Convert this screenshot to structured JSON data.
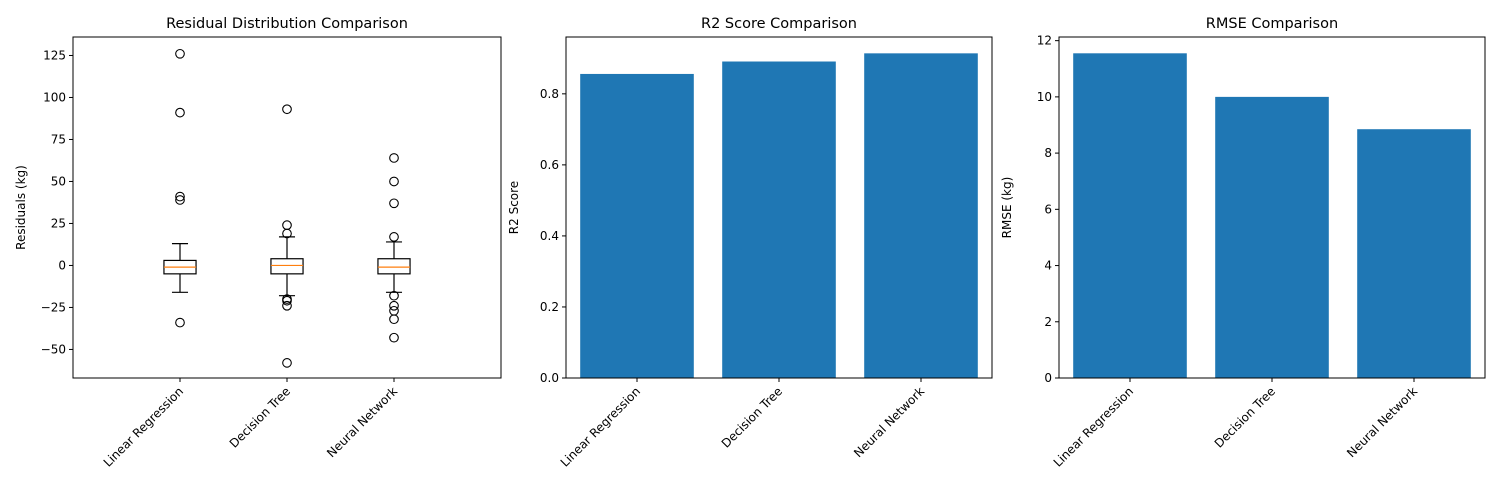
{
  "chart_data": [
    {
      "type": "box",
      "title": "Residual Distribution Comparison",
      "xlabel": "",
      "ylabel": "Residuals (kg)",
      "categories": [
        "Linear Regression",
        "Decision Tree",
        "Neural Network"
      ],
      "ylim": [
        -67,
        136
      ],
      "yticks": [
        -50,
        -25,
        0,
        25,
        50,
        75,
        100,
        125
      ],
      "ytick_labels": [
        "−50",
        "−25",
        "0",
        "25",
        "50",
        "75",
        "100",
        "125"
      ],
      "boxes": [
        {
          "name": "Linear Regression",
          "whisker_low": -16,
          "q1": -5,
          "median": -1,
          "q3": 3,
          "whisker_high": 13,
          "outliers": [
            126,
            91,
            41,
            39,
            -34
          ]
        },
        {
          "name": "Decision Tree",
          "whisker_low": -18,
          "q1": -5,
          "median": 0,
          "q3": 4,
          "whisker_high": 17,
          "outliers": [
            93,
            24,
            19,
            -20,
            -21,
            -24,
            -58
          ]
        },
        {
          "name": "Neural Network",
          "whisker_low": -16,
          "q1": -5,
          "median": -1,
          "q3": 4,
          "whisker_high": 14,
          "outliers": [
            64,
            50,
            37,
            17,
            -18,
            -24,
            -27,
            -32,
            -43
          ]
        }
      ],
      "colors": {
        "box": "#000000",
        "median": "#ff7f0e"
      }
    },
    {
      "type": "bar",
      "title": "R2 Score Comparison",
      "xlabel": "",
      "ylabel": "R2 Score",
      "categories": [
        "Linear Regression",
        "Decision Tree",
        "Neural Network"
      ],
      "values": [
        0.856,
        0.891,
        0.914
      ],
      "ylim": [
        0,
        0.96
      ],
      "yticks": [
        0,
        0.2,
        0.4,
        0.6,
        0.8
      ],
      "ytick_labels": [
        "0.0",
        "0.2",
        "0.4",
        "0.6",
        "0.8"
      ],
      "color": "#1f77b4"
    },
    {
      "type": "bar",
      "title": "RMSE Comparison",
      "xlabel": "",
      "ylabel": "RMSE (kg)",
      "categories": [
        "Linear Regression",
        "Decision Tree",
        "Neural Network"
      ],
      "values": [
        11.55,
        10.0,
        8.85
      ],
      "ylim": [
        0,
        12.13
      ],
      "yticks": [
        0,
        2,
        4,
        6,
        8,
        10,
        12
      ],
      "ytick_labels": [
        "0",
        "2",
        "4",
        "6",
        "8",
        "10",
        "12"
      ],
      "color": "#1f77b4"
    }
  ]
}
